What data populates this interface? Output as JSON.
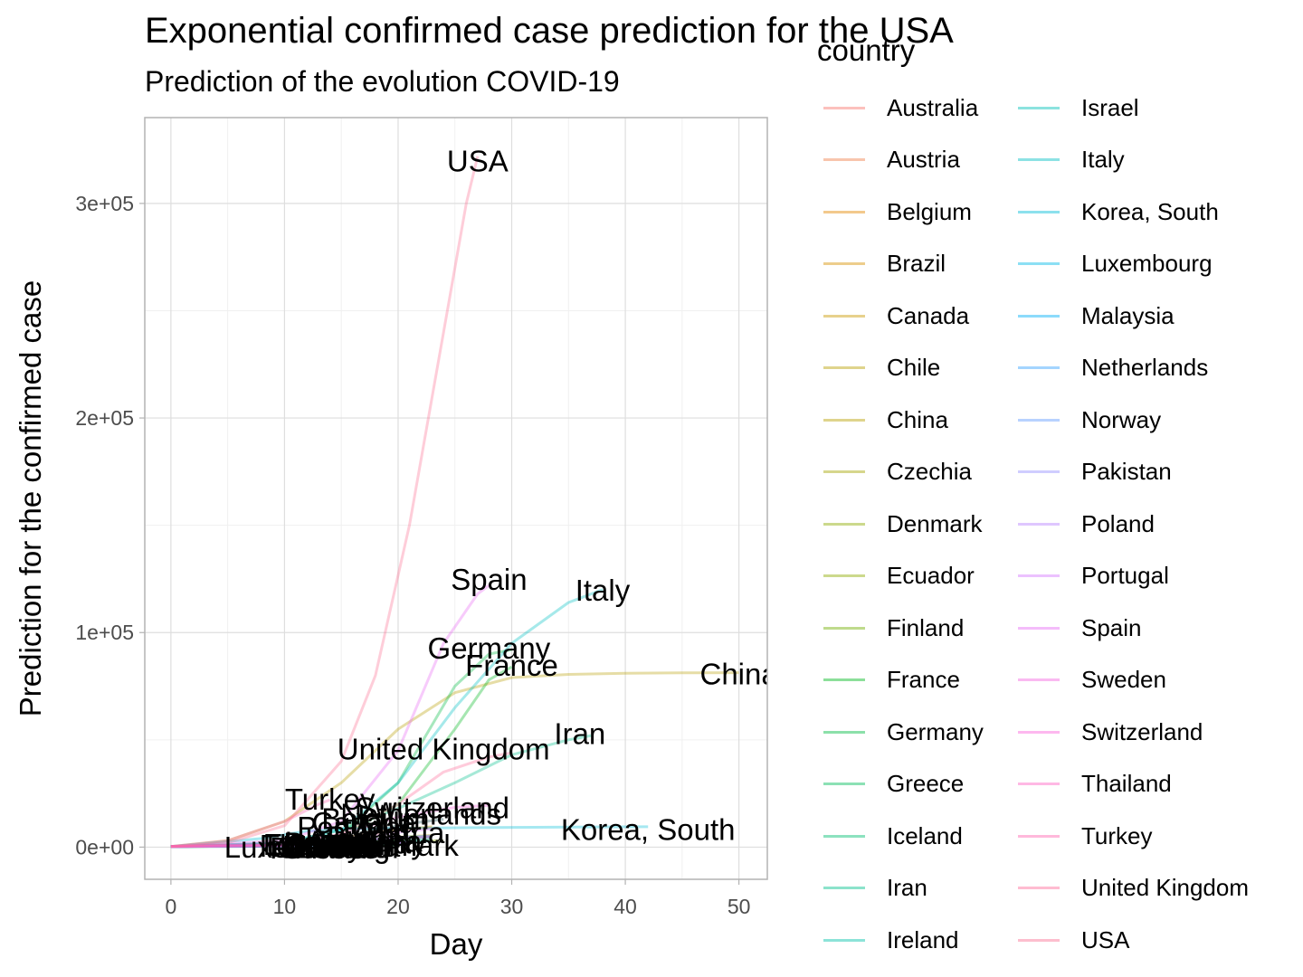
{
  "chart_data": {
    "type": "line",
    "title": "Exponential confirmed case prediction for the USA",
    "subtitle": "Prediction of the evolution COVID-19",
    "xlabel": "Day",
    "ylabel": "Prediction for the confirmed case",
    "xlim": [
      -2.3,
      52.5
    ],
    "ylim": [
      -15000,
      340000
    ],
    "x_ticks": [
      0,
      10,
      20,
      30,
      40,
      50
    ],
    "x_tick_labels": [
      "0",
      "10",
      "20",
      "30",
      "40",
      "50"
    ],
    "y_ticks": [
      0,
      100000,
      200000,
      300000
    ],
    "y_tick_labels": [
      "0e+00",
      "1e+05",
      "2e+05",
      "3e+05"
    ],
    "grid": true,
    "legend_title": "country",
    "legend_position": "right",
    "series": [
      {
        "name": "Australia",
        "color": "#F8766D",
        "values": [
          [
            0,
            300
          ],
          [
            10,
            900
          ],
          [
            17,
            3500
          ],
          [
            21,
            4300
          ],
          [
            23,
            4500
          ]
        ]
      },
      {
        "name": "Austria",
        "color": "#EF7F49",
        "values": [
          [
            0,
            300
          ],
          [
            10,
            1500
          ],
          [
            18,
            7500
          ],
          [
            21,
            8700
          ],
          [
            23,
            9000
          ]
        ]
      },
      {
        "name": "Belgium",
        "color": "#E58700",
        "values": [
          [
            0,
            300
          ],
          [
            10,
            1200
          ],
          [
            17,
            7000
          ],
          [
            21,
            11000
          ],
          [
            24,
            13000
          ]
        ]
      },
      {
        "name": "Brazil",
        "color": "#D89000",
        "values": [
          [
            0,
            300
          ],
          [
            10,
            800
          ],
          [
            17,
            3500
          ],
          [
            21,
            5000
          ],
          [
            23,
            5500
          ]
        ]
      },
      {
        "name": "Canada",
        "color": "#C99800",
        "values": [
          [
            0,
            300
          ],
          [
            10,
            900
          ],
          [
            17,
            5500
          ],
          [
            21,
            8500
          ],
          [
            23,
            9500
          ]
        ]
      },
      {
        "name": "Chile",
        "color": "#B79F00",
        "values": [
          [
            0,
            300
          ],
          [
            10,
            600
          ],
          [
            16,
            2500
          ],
          [
            19,
            3200
          ],
          [
            21,
            3500
          ]
        ]
      },
      {
        "name": "China",
        "color": "#B79F00",
        "values": [
          [
            0,
            300
          ],
          [
            5,
            3000
          ],
          [
            10,
            12000
          ],
          [
            15,
            30000
          ],
          [
            20,
            55000
          ],
          [
            25,
            72000
          ],
          [
            30,
            79000
          ],
          [
            35,
            80500
          ],
          [
            40,
            81000
          ],
          [
            45,
            81200
          ],
          [
            50,
            81300
          ]
        ]
      },
      {
        "name": "Czechia",
        "color": "#A3A500",
        "values": [
          [
            0,
            300
          ],
          [
            10,
            500
          ],
          [
            16,
            2000
          ],
          [
            19,
            2700
          ],
          [
            21,
            3000
          ]
        ]
      },
      {
        "name": "Denmark",
        "color": "#8EAB00",
        "values": [
          [
            0,
            300
          ],
          [
            10,
            800
          ],
          [
            17,
            2300
          ],
          [
            21,
            2800
          ],
          [
            24,
            3000
          ]
        ]
      },
      {
        "name": "Ecuador",
        "color": "#8EAB00",
        "values": [
          [
            0,
            300
          ],
          [
            10,
            600
          ],
          [
            16,
            2000
          ],
          [
            19,
            2600
          ],
          [
            21,
            2800
          ]
        ]
      },
      {
        "name": "Finland",
        "color": "#72B000",
        "values": [
          [
            0,
            300
          ],
          [
            10,
            500
          ],
          [
            16,
            1200
          ],
          [
            19,
            1500
          ],
          [
            21,
            1600
          ]
        ]
      },
      {
        "name": "France",
        "color": "#00B81F",
        "values": [
          [
            0,
            300
          ],
          [
            10,
            1500
          ],
          [
            15,
            5000
          ],
          [
            20,
            20000
          ],
          [
            25,
            55000
          ],
          [
            28,
            78000
          ],
          [
            30,
            84000
          ]
        ]
      },
      {
        "name": "Germany",
        "color": "#00BA42",
        "values": [
          [
            0,
            300
          ],
          [
            10,
            1000
          ],
          [
            15,
            6000
          ],
          [
            20,
            30000
          ],
          [
            25,
            75000
          ],
          [
            28,
            90000
          ],
          [
            30,
            92000
          ]
        ]
      },
      {
        "name": "Greece",
        "color": "#00BD5C",
        "values": [
          [
            0,
            300
          ],
          [
            10,
            400
          ],
          [
            16,
            900
          ],
          [
            19,
            1100
          ],
          [
            21,
            1200
          ]
        ]
      },
      {
        "name": "Iceland",
        "color": "#00BE70",
        "values": [
          [
            0,
            300
          ],
          [
            10,
            400
          ],
          [
            16,
            900
          ],
          [
            19,
            1100
          ],
          [
            21,
            1200
          ]
        ]
      },
      {
        "name": "Iran",
        "color": "#00C08B",
        "values": [
          [
            0,
            300
          ],
          [
            10,
            2000
          ],
          [
            15,
            8000
          ],
          [
            20,
            18000
          ],
          [
            25,
            30000
          ],
          [
            30,
            43000
          ],
          [
            35,
            50000
          ],
          [
            37,
            52000
          ]
        ]
      },
      {
        "name": "Ireland",
        "color": "#00C1A9",
        "values": [
          [
            0,
            300
          ],
          [
            10,
            700
          ],
          [
            17,
            2500
          ],
          [
            21,
            3500
          ],
          [
            23,
            4000
          ]
        ]
      },
      {
        "name": "Israel",
        "color": "#00C0B8",
        "values": [
          [
            0,
            300
          ],
          [
            10,
            800
          ],
          [
            17,
            3500
          ],
          [
            21,
            4800
          ],
          [
            23,
            5200
          ]
        ]
      },
      {
        "name": "Italy",
        "color": "#00BFC4",
        "values": [
          [
            0,
            300
          ],
          [
            10,
            2000
          ],
          [
            15,
            8000
          ],
          [
            20,
            30000
          ],
          [
            25,
            65000
          ],
          [
            30,
            95000
          ],
          [
            35,
            114000
          ],
          [
            38,
            120000
          ]
        ]
      },
      {
        "name": "Korea, South",
        "color": "#00BCD8",
        "values": [
          [
            0,
            300
          ],
          [
            8,
            4000
          ],
          [
            12,
            7500
          ],
          [
            16,
            8500
          ],
          [
            20,
            8800
          ],
          [
            30,
            9200
          ],
          [
            42,
            9500
          ]
        ]
      },
      {
        "name": "Luxembourg",
        "color": "#00B8E7",
        "values": [
          [
            0,
            300
          ],
          [
            10,
            500
          ],
          [
            16,
            1300
          ],
          [
            19,
            1800
          ],
          [
            21,
            2000
          ]
        ]
      },
      {
        "name": "Malaysia",
        "color": "#00B0F6",
        "values": [
          [
            0,
            300
          ],
          [
            10,
            700
          ],
          [
            17,
            2000
          ],
          [
            21,
            2600
          ],
          [
            23,
            2800
          ]
        ]
      },
      {
        "name": "Netherlands",
        "color": "#35A2FF",
        "values": [
          [
            0,
            300
          ],
          [
            10,
            1200
          ],
          [
            17,
            7000
          ],
          [
            21,
            11000
          ],
          [
            24,
            13000
          ]
        ]
      },
      {
        "name": "Norway",
        "color": "#619CFF",
        "values": [
          [
            0,
            300
          ],
          [
            10,
            800
          ],
          [
            17,
            3500
          ],
          [
            21,
            4500
          ],
          [
            23,
            5000
          ]
        ]
      },
      {
        "name": "Pakistan",
        "color": "#9590FF",
        "values": [
          [
            0,
            300
          ],
          [
            10,
            500
          ],
          [
            16,
            1500
          ],
          [
            19,
            2000
          ],
          [
            21,
            2200
          ]
        ]
      },
      {
        "name": "Poland",
        "color": "#B983FF",
        "values": [
          [
            0,
            300
          ],
          [
            10,
            500
          ],
          [
            16,
            1800
          ],
          [
            19,
            2300
          ],
          [
            21,
            2500
          ]
        ]
      },
      {
        "name": "Portugal",
        "color": "#D575FE",
        "values": [
          [
            0,
            300
          ],
          [
            10,
            1000
          ],
          [
            17,
            5000
          ],
          [
            21,
            7500
          ],
          [
            23,
            8500
          ]
        ]
      },
      {
        "name": "Spain",
        "color": "#E76BF3",
        "values": [
          [
            0,
            300
          ],
          [
            10,
            3000
          ],
          [
            15,
            12000
          ],
          [
            20,
            45000
          ],
          [
            24,
            95000
          ],
          [
            27,
            118000
          ],
          [
            28,
            122000
          ]
        ]
      },
      {
        "name": "Sweden",
        "color": "#F463E0",
        "values": [
          [
            0,
            300
          ],
          [
            10,
            800
          ],
          [
            17,
            3500
          ],
          [
            21,
            4500
          ],
          [
            23,
            5000
          ]
        ]
      },
      {
        "name": "Switzerland",
        "color": "#FA62DB",
        "values": [
          [
            0,
            300
          ],
          [
            10,
            1500
          ],
          [
            15,
            6000
          ],
          [
            20,
            14000
          ],
          [
            25,
            18500
          ],
          [
            28,
            19500
          ]
        ]
      },
      {
        "name": "Thailand",
        "color": "#FF61C3",
        "values": [
          [
            0,
            300
          ],
          [
            10,
            600
          ],
          [
            16,
            1500
          ],
          [
            19,
            1800
          ],
          [
            21,
            2000
          ]
        ]
      },
      {
        "name": "Turkey",
        "color": "#FF64B0",
        "values": [
          [
            0,
            300
          ],
          [
            5,
            3000
          ],
          [
            10,
            12000
          ],
          [
            13,
            20000
          ],
          [
            14,
            22000
          ]
        ]
      },
      {
        "name": "United Kingdom",
        "color": "#FF6A98",
        "values": [
          [
            0,
            300
          ],
          [
            10,
            1000
          ],
          [
            15,
            6000
          ],
          [
            20,
            20000
          ],
          [
            24,
            35000
          ],
          [
            28,
            42000
          ],
          [
            30,
            44000
          ]
        ]
      },
      {
        "name": "USA",
        "color": "#FB6F92",
        "values": [
          [
            0,
            300
          ],
          [
            5,
            2000
          ],
          [
            10,
            10000
          ],
          [
            15,
            40000
          ],
          [
            18,
            80000
          ],
          [
            21,
            150000
          ],
          [
            24,
            240000
          ],
          [
            26,
            300000
          ],
          [
            27,
            322000
          ]
        ]
      }
    ],
    "labels": [
      {
        "text": "USA",
        "x": 27,
        "y": 320000
      },
      {
        "text": "Spain",
        "x": 28,
        "y": 125000
      },
      {
        "text": "Italy",
        "x": 38,
        "y": 120000
      },
      {
        "text": "Germany",
        "x": 28,
        "y": 93000
      },
      {
        "text": "France",
        "x": 30,
        "y": 85000
      },
      {
        "text": "China",
        "x": 50,
        "y": 81000
      },
      {
        "text": "Iran",
        "x": 36,
        "y": 53000
      },
      {
        "text": "United Kingdom",
        "x": 24,
        "y": 46000
      },
      {
        "text": "Turkey",
        "x": 14,
        "y": 22500
      },
      {
        "text": "Switzerland",
        "x": 23,
        "y": 18500
      },
      {
        "text": "Netherlands",
        "x": 22,
        "y": 15500
      },
      {
        "text": "Belgium",
        "x": 18,
        "y": 13500
      },
      {
        "text": "Canada",
        "x": 17,
        "y": 11500
      },
      {
        "text": "Portugal",
        "x": 16,
        "y": 9500
      },
      {
        "text": "Korea, South",
        "x": 42,
        "y": 8500
      },
      {
        "text": "Austria",
        "x": 20,
        "y": 7000
      },
      {
        "text": "Brazil",
        "x": 17,
        "y": 5000
      },
      {
        "text": "Australia",
        "x": 17,
        "y": 3000
      },
      {
        "text": "Norway",
        "x": 18,
        "y": 2000
      },
      {
        "text": "Sweden",
        "x": 15,
        "y": 1500
      },
      {
        "text": "Denmark",
        "x": 20,
        "y": 1000
      },
      {
        "text": "Malaysia",
        "x": 15,
        "y": 500
      },
      {
        "text": "Ireland",
        "x": 14,
        "y": 2500
      },
      {
        "text": "Israel",
        "x": 15,
        "y": 3500
      },
      {
        "text": "Chile",
        "x": 13,
        "y": 500
      },
      {
        "text": "Czechia",
        "x": 14,
        "y": 0
      },
      {
        "text": "Ecuador",
        "x": 13,
        "y": 1500
      },
      {
        "text": "Poland",
        "x": 14,
        "y": 2000
      },
      {
        "text": "Pakistan",
        "x": 15,
        "y": 0
      },
      {
        "text": "Thailand",
        "x": 13,
        "y": 1000
      },
      {
        "text": "Luxembourg",
        "x": 12,
        "y": 200
      },
      {
        "text": "Finland",
        "x": 13,
        "y": -200
      },
      {
        "text": "Greece",
        "x": 14,
        "y": -300
      },
      {
        "text": "Iceland",
        "x": 12,
        "y": 600
      }
    ]
  }
}
